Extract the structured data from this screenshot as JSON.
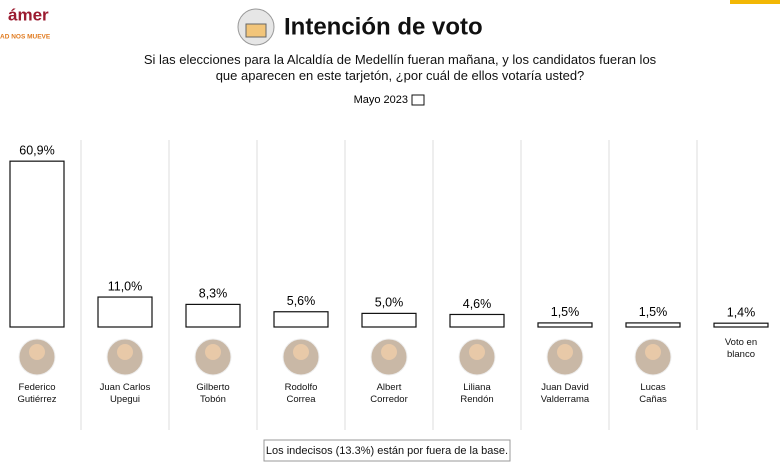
{
  "logo": {
    "name": "ámer",
    "tagline": "AD NOS MUEVE"
  },
  "chart_data": {
    "type": "bar",
    "title": "Intención de voto",
    "subtitle": "Si las elecciones para la Alcaldía de Medellín fueran mañana, y los candidatos fueran los que aparecen en este tarjetón, ¿por cuál de ellos votaría usted?",
    "categories": [
      "Federico\nGutiérrez",
      "Juan Carlos\nUpegui",
      "Gilberto\nTobón",
      "Rodolfo\nCorrea",
      "Albert\nCorredor",
      "Liliana\nRendón",
      "Juan David\nValderrama",
      "Lucas\nCañas",
      "Voto en\nblanco"
    ],
    "series": [
      {
        "name": "Mayo 2023",
        "color": "#ffffff",
        "values": [
          60.9,
          11.0,
          8.3,
          5.6,
          5.0,
          4.6,
          1.5,
          1.5,
          1.4
        ],
        "value_labels": [
          "60,9%",
          "11,0%",
          "8,3%",
          "5,6%",
          "5,0%",
          "4,6%",
          "1,5%",
          "1,5%",
          "1,4%"
        ]
      }
    ],
    "ylim": [
      0,
      65
    ],
    "footnote": "Los indecisos (13.3%) están por fuera de la base."
  }
}
